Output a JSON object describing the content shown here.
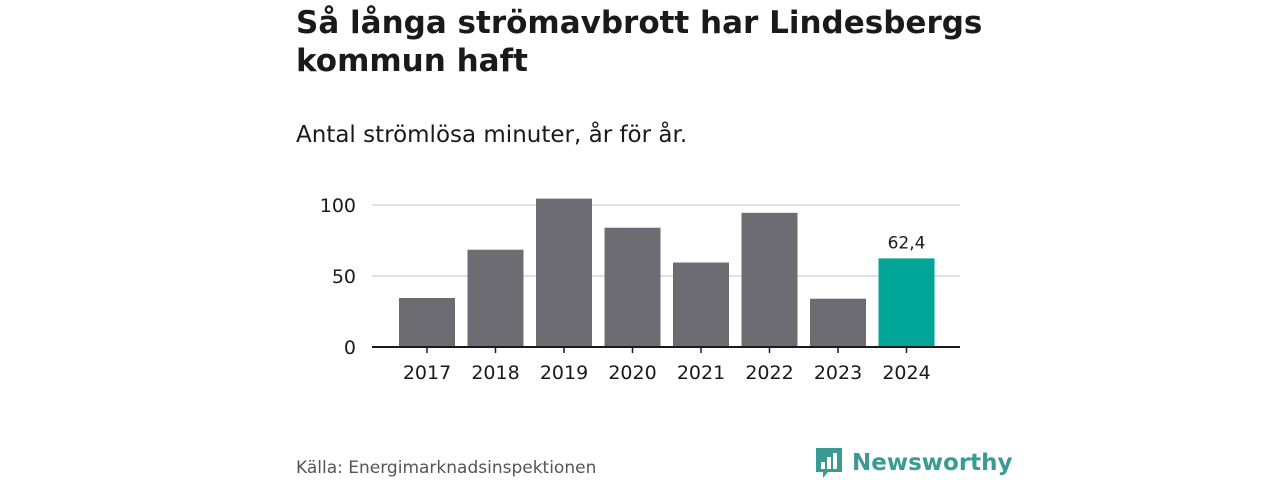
{
  "chart_data": {
    "type": "bar",
    "title": "Så långa strömavbrott har Lindesbergs kommun haft",
    "subtitle": "Antal strömlösa minuter, år för år.",
    "categories": [
      "2017",
      "2018",
      "2019",
      "2020",
      "2021",
      "2022",
      "2023",
      "2024"
    ],
    "values": [
      34.5,
      68.5,
      104.5,
      84,
      59.5,
      94.5,
      34,
      62.4
    ],
    "data_labels": [
      null,
      null,
      null,
      null,
      null,
      null,
      null,
      "62,4"
    ],
    "yticks": [
      0,
      50,
      100
    ],
    "ylim": [
      0,
      110
    ],
    "xlabel": "",
    "ylabel": "",
    "grid": true,
    "colors": {
      "bar": "#6d6c72",
      "highlight": "#00a598",
      "grid": "#d9d9d9",
      "axis": "#1a1a1a"
    },
    "highlight_index": 7
  },
  "footer": {
    "source": "Källa: Energimarknadsinspektionen",
    "brand": "Newsworthy",
    "brand_icon": "bar-chart-icon"
  }
}
